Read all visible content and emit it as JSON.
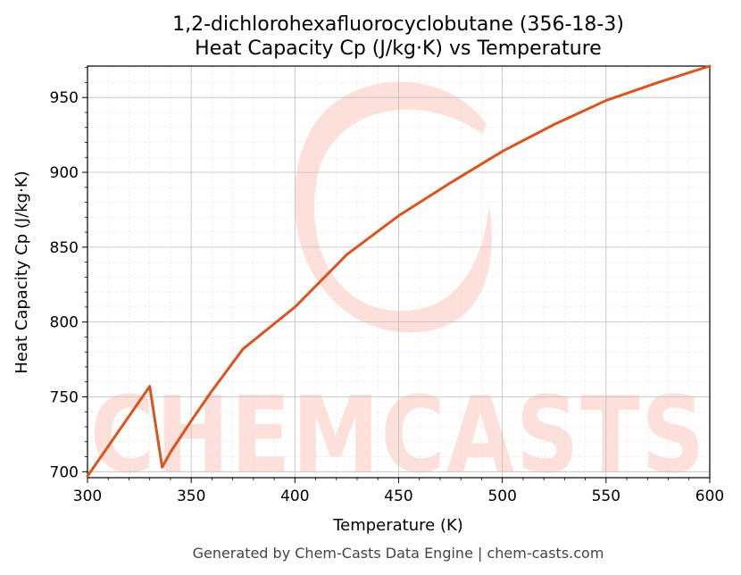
{
  "chart_data": {
    "type": "line",
    "title": "1,2-dichlorohexafluorocyclobutane (356-18-3)",
    "subtitle": "Heat Capacity Cp (J/kg·K) vs Temperature",
    "xlabel": "Temperature (K)",
    "ylabel": "Heat Capacity Cp (J/kg·K)",
    "xlim": [
      300,
      600
    ],
    "ylim": [
      696,
      971
    ],
    "xticks": [
      300,
      350,
      400,
      450,
      500,
      550,
      600
    ],
    "yticks": [
      700,
      750,
      800,
      850,
      900,
      950
    ],
    "grid": true,
    "series": [
      {
        "color": "#d9541e",
        "x": [
          300,
          310,
          320,
          330,
          336,
          340,
          350,
          360,
          375,
          400,
          425,
          450,
          475,
          500,
          525,
          550,
          575,
          600
        ],
        "y": [
          697,
          717,
          737,
          757,
          703,
          713,
          734,
          754,
          782,
          810,
          845,
          871,
          893,
          914,
          932,
          948,
          960,
          971
        ]
      }
    ]
  },
  "watermark": {
    "text": "CHEMCASTS",
    "color": "#fde0da"
  },
  "footer": "Generated by Chem-Casts Data Engine | chem-casts.com"
}
